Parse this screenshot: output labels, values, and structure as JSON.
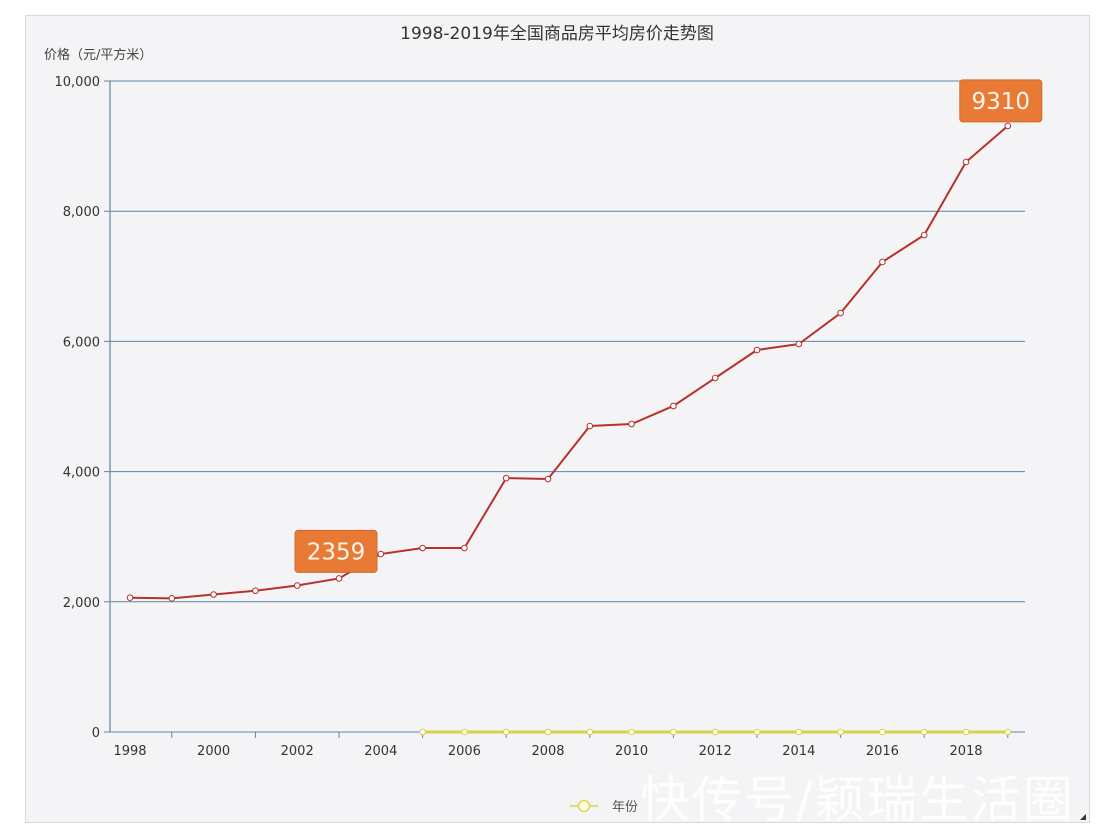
{
  "chart_data": {
    "type": "line",
    "title": "1998-2019年全国商品房平均房价走势图",
    "ylabel": "价格（元/平方米）",
    "xlabel": "",
    "x": [
      1998,
      1999,
      2000,
      2001,
      2002,
      2003,
      2004,
      2005,
      2006,
      2007,
      2008,
      2009,
      2010,
      2011,
      2012,
      2013,
      2014,
      2015,
      2016,
      2017,
      2018,
      2019
    ],
    "xtick_labels": [
      "1998",
      "2000",
      "2002",
      "2004",
      "2006",
      "2008",
      "2010",
      "2012",
      "2014",
      "2016",
      "2018"
    ],
    "ytick_labels": [
      "0",
      "2,000",
      "4,000",
      "6,000",
      "8,000",
      "10,000"
    ],
    "ylim": [
      0,
      10000
    ],
    "grid": true,
    "series": [
      {
        "name": "价格",
        "color": "#b8312a",
        "values": [
          2063,
          2053,
          2112,
          2170,
          2250,
          2359,
          2734,
          2826,
          2826,
          3900,
          3886,
          4700,
          4731,
          5008,
          5438,
          5868,
          5960,
          6436,
          7220,
          7634,
          8756,
          9310
        ]
      },
      {
        "name": "年份",
        "color": "#d4d44a",
        "values": [
          null,
          null,
          null,
          null,
          null,
          null,
          null,
          0,
          0,
          0,
          0,
          0,
          0,
          0,
          0,
          0,
          0,
          0,
          0,
          0,
          0,
          0
        ]
      }
    ],
    "annotations": [
      {
        "x": 2003,
        "label": "2359"
      },
      {
        "x": 2019,
        "label": "9310"
      }
    ],
    "legend": {
      "label": "年份",
      "placement": "bottom-center"
    }
  },
  "watermark": "快传号/颖瑞生活圈"
}
